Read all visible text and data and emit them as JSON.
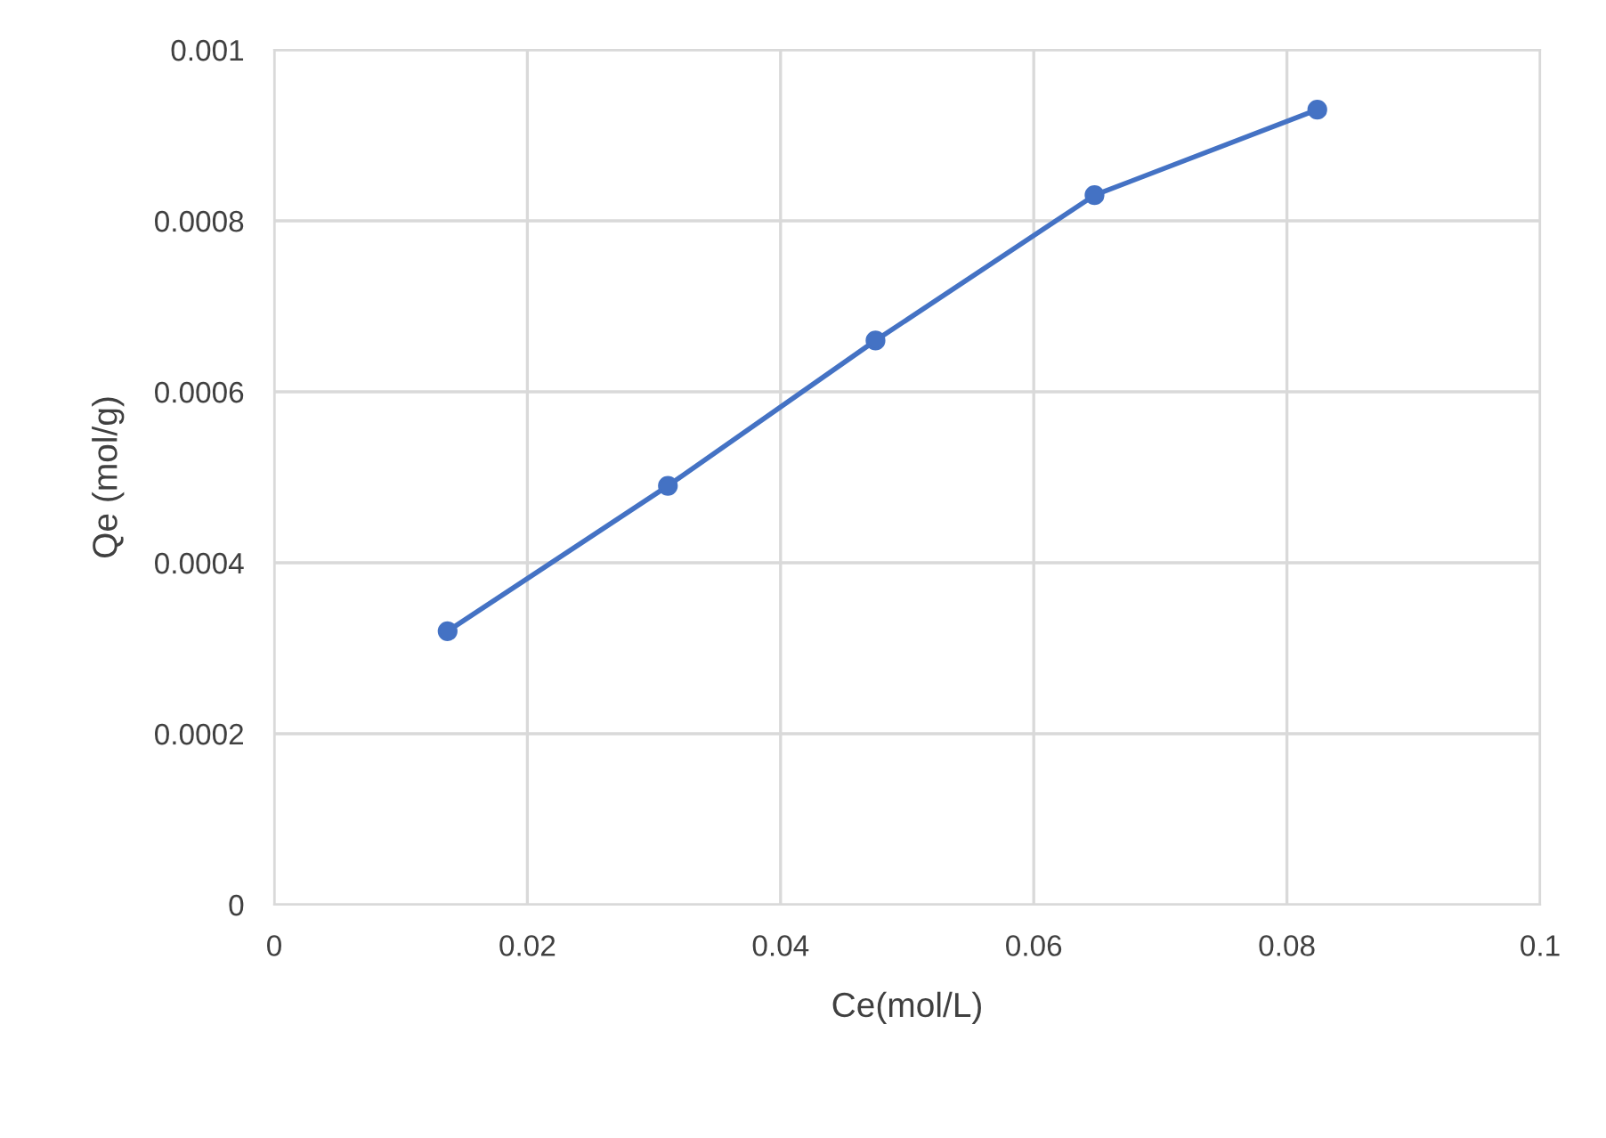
{
  "chart_data": {
    "type": "line",
    "xlabel": "Ce(mol/L)",
    "ylabel": "Qe (mol/g)",
    "x": [
      0.0137,
      0.0311,
      0.0475,
      0.0648,
      0.0824
    ],
    "series": [
      {
        "color": "#4472c4",
        "values": [
          0.00032,
          0.00049,
          0.00066,
          0.00083,
          0.00093
        ]
      }
    ],
    "xlim": [
      0,
      0.1
    ],
    "xticks": [
      0,
      0.02,
      0.04,
      0.06,
      0.08,
      0.1
    ],
    "ylim": [
      0,
      0.001
    ],
    "yticks": [
      0,
      0.0002,
      0.0004,
      0.0006,
      0.0008,
      0.001
    ],
    "grid": true,
    "marker": "circle",
    "line_style": "solid"
  }
}
